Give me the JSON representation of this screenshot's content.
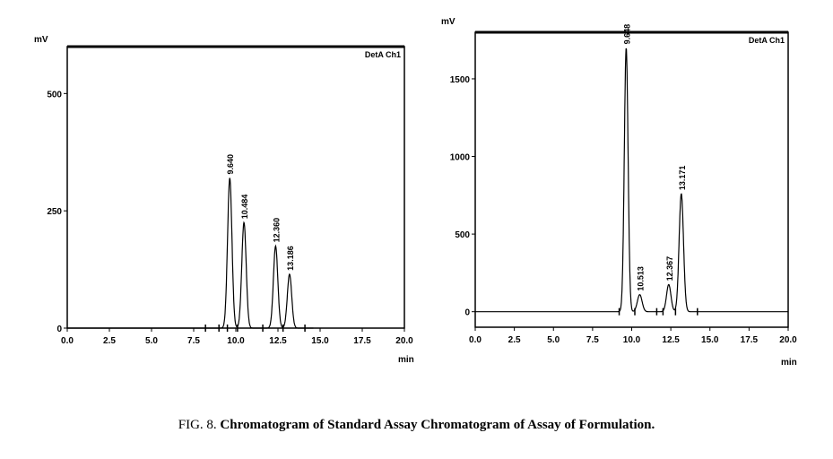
{
  "caption": {
    "prefix": "FIG. 8. ",
    "text": "Chromatogram of Standard Assay Chromatogram of Assay of Formulation."
  },
  "chart_data": [
    {
      "type": "line",
      "y_unit": "mV",
      "x_unit": "min",
      "channel_label": "DetA Ch1",
      "xlim": [
        0,
        20
      ],
      "ylim": [
        0,
        600
      ],
      "x_ticks": [
        "0.0",
        "2.5",
        "5.0",
        "7.5",
        "10.0",
        "12.5",
        "15.0",
        "17.5",
        "20.0"
      ],
      "x_tick_values": [
        0,
        2.5,
        5,
        7.5,
        10,
        12.5,
        15,
        17.5,
        20
      ],
      "y_ticks": [
        "0",
        "250",
        "500"
      ],
      "y_tick_values": [
        0,
        250,
        500
      ],
      "trace_end": 14.6,
      "peaks": [
        {
          "label": "9.640",
          "rt": 9.64,
          "height": 320,
          "width": 0.13
        },
        {
          "label": "10.484",
          "rt": 10.484,
          "height": 225,
          "width": 0.13
        },
        {
          "label": "12.360",
          "rt": 12.36,
          "height": 175,
          "width": 0.13
        },
        {
          "label": "13.186",
          "rt": 13.186,
          "height": 115,
          "width": 0.13
        }
      ],
      "markers": [
        8.2,
        9.0,
        9.5,
        10.1,
        11.6,
        12.8,
        14.1
      ]
    },
    {
      "type": "line",
      "y_unit": "mV",
      "x_unit": "min",
      "channel_label": "DetA Ch1",
      "xlim": [
        0,
        20
      ],
      "ylim": [
        -100,
        1800
      ],
      "x_ticks": [
        "0.0",
        "2.5",
        "5.0",
        "7.5",
        "10.0",
        "12.5",
        "15.0",
        "17.5",
        "20.0"
      ],
      "x_tick_values": [
        0,
        2.5,
        5,
        7.5,
        10,
        12.5,
        15,
        17.5,
        20
      ],
      "y_ticks": [
        "0",
        "500",
        "1000",
        "1500"
      ],
      "y_tick_values": [
        0,
        500,
        1000,
        1500
      ],
      "trace_end": 20,
      "peaks": [
        {
          "label": "9.648",
          "rt": 9.648,
          "height": 1700,
          "width": 0.12
        },
        {
          "label": "10.513",
          "rt": 10.513,
          "height": 110,
          "width": 0.15
        },
        {
          "label": "12.367",
          "rt": 12.367,
          "height": 175,
          "width": 0.14
        },
        {
          "label": "13.171",
          "rt": 13.171,
          "height": 760,
          "width": 0.14
        }
      ],
      "markers": [
        9.2,
        10.2,
        11.6,
        12.0,
        12.8,
        14.2
      ]
    }
  ]
}
